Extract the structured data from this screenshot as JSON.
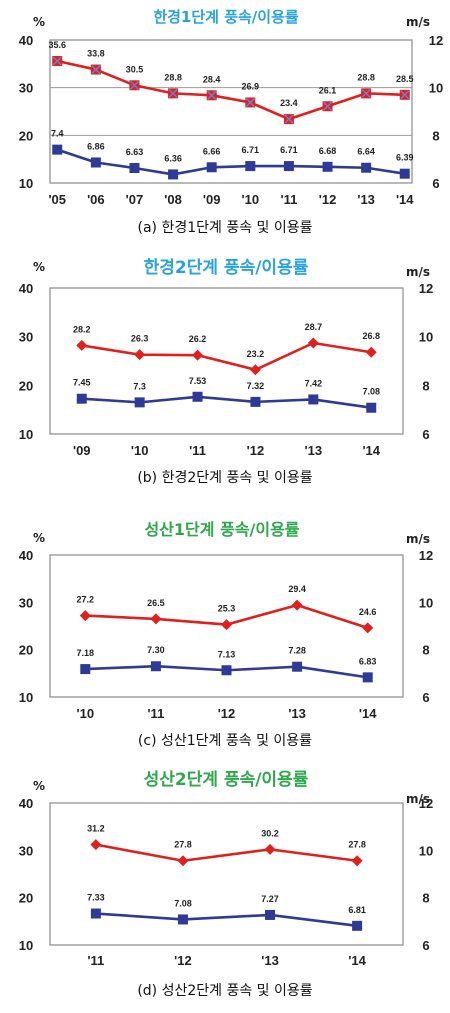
{
  "colors": {
    "title_blue": "#2aa3dd",
    "title_green": "#2ea84a",
    "rate_line": "#e01f1f",
    "speed_line": "#2e3a96",
    "frame": "#8a8a8a"
  },
  "chart_data": [
    {
      "type": "line",
      "title": "한경1단계 풍속/이용률",
      "caption": "(a) 한경1단계 풍속 및 이용률",
      "left_unit": "%",
      "right_unit": "m/s",
      "categories": [
        "'05",
        "'06",
        "'07",
        "'08",
        "'09",
        "'10",
        "'11",
        "'12",
        "'13",
        "'14"
      ],
      "left_ticks": [
        "40",
        "30",
        "20",
        "10"
      ],
      "right_ticks": [
        "12",
        "10",
        "8",
        "6"
      ],
      "ylim_left": [
        10,
        40
      ],
      "ylim_right": [
        6,
        12
      ],
      "grid": true,
      "series": [
        {
          "axis": "left",
          "marker": "square-x",
          "values": [
            35.6,
            33.8,
            30.5,
            28.8,
            28.4,
            26.9,
            23.4,
            26.1,
            28.8,
            28.5
          ],
          "labels": [
            "35.6",
            "33.8",
            "30.5",
            "28.8",
            "28.4",
            "26.9",
            "23.4",
            "26.1",
            "28.8",
            "28.5"
          ]
        },
        {
          "axis": "right",
          "marker": "square",
          "values": [
            7.4,
            6.86,
            6.63,
            6.36,
            6.66,
            6.71,
            6.71,
            6.68,
            6.64,
            6.39
          ],
          "labels": [
            "7.4",
            "6.86",
            "6.63",
            "6.36",
            "6.66",
            "6.71",
            "6.71",
            "6.68",
            "6.64",
            "6.39"
          ]
        }
      ]
    },
    {
      "type": "line",
      "title": "한경2단계 풍속/이용률",
      "caption": "(b) 한경2단계 풍속 및 이용률",
      "left_unit": "%",
      "right_unit": "m/s",
      "categories": [
        "'09",
        "'10",
        "'11",
        "'12",
        "'13",
        "'14"
      ],
      "left_ticks": [
        "40",
        "30",
        "20",
        "10"
      ],
      "right_ticks": [
        "12",
        "10",
        "8",
        "6"
      ],
      "ylim_left": [
        10,
        40
      ],
      "ylim_right": [
        6,
        12
      ],
      "grid": false,
      "series": [
        {
          "axis": "left",
          "marker": "diamond",
          "values": [
            28.2,
            26.3,
            26.2,
            23.2,
            28.7,
            26.8
          ],
          "labels": [
            "28.2",
            "26.3",
            "26.2",
            "23.2",
            "28.7",
            "26.8"
          ]
        },
        {
          "axis": "right",
          "marker": "square",
          "values": [
            7.45,
            7.3,
            7.53,
            7.32,
            7.42,
            7.08
          ],
          "labels": [
            "7.45",
            "7.3",
            "7.53",
            "7.32",
            "7.42",
            "7.08"
          ]
        }
      ]
    },
    {
      "type": "line",
      "title": "성산1단계 풍속/이용률",
      "caption": "(c) 성산1단계 풍속 및 이용률",
      "left_unit": "%",
      "right_unit": "m/s",
      "categories": [
        "'10",
        "'11",
        "'12",
        "'13",
        "'14"
      ],
      "left_ticks": [
        "40",
        "30",
        "20",
        "10"
      ],
      "right_ticks": [
        "12",
        "10",
        "8",
        "6"
      ],
      "ylim_left": [
        10,
        40
      ],
      "ylim_right": [
        6,
        12
      ],
      "grid": false,
      "series": [
        {
          "axis": "left",
          "marker": "diamond",
          "values": [
            27.2,
            26.5,
            25.3,
            29.4,
            24.6
          ],
          "labels": [
            "27.2",
            "26.5",
            "25.3",
            "29.4",
            "24.6"
          ]
        },
        {
          "axis": "right",
          "marker": "square",
          "values": [
            7.18,
            7.3,
            7.13,
            7.28,
            6.83
          ],
          "labels": [
            "7.18",
            "7.30",
            "7.13",
            "7.28",
            "6.83"
          ]
        }
      ]
    },
    {
      "type": "line",
      "title": "성산2단계 풍속/이용률",
      "caption": "(d) 성산2단계 풍속 및 이용률",
      "left_unit": "%",
      "right_unit": "m/s",
      "categories": [
        "'11",
        "'12",
        "'13",
        "'14"
      ],
      "left_ticks": [
        "40",
        "30",
        "20",
        "10"
      ],
      "right_ticks": [
        "12",
        "10",
        "8",
        "6"
      ],
      "ylim_left": [
        10,
        40
      ],
      "ylim_right": [
        6,
        12
      ],
      "grid": false,
      "series": [
        {
          "axis": "left",
          "marker": "diamond",
          "values": [
            31.2,
            27.8,
            30.2,
            27.8
          ],
          "labels": [
            "31.2",
            "27.8",
            "30.2",
            "27.8"
          ]
        },
        {
          "axis": "right",
          "marker": "square",
          "values": [
            7.33,
            7.08,
            7.27,
            6.81
          ],
          "labels": [
            "7.33",
            "7.08",
            "7.27",
            "6.81"
          ]
        }
      ]
    }
  ]
}
